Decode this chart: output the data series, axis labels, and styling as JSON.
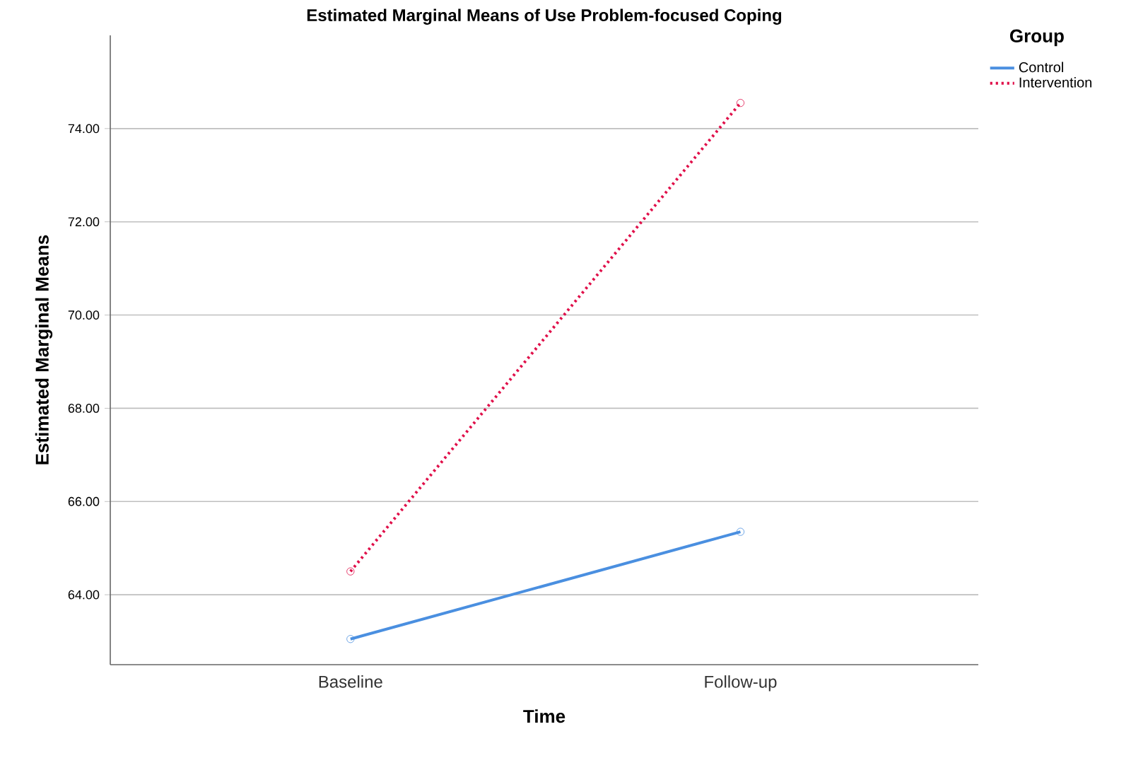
{
  "chart_data": {
    "type": "line",
    "title": "Estimated Marginal Means of Use Problem-focused Coping",
    "xlabel": "Time",
    "ylabel": "Estimated Marginal Means",
    "legend_title": "Group",
    "categories": [
      "Baseline",
      "Follow-up"
    ],
    "series": [
      {
        "name": "Control",
        "color": "#4a8fe0",
        "values": [
          63.05,
          65.35
        ],
        "line_style": "solid"
      },
      {
        "name": "Intervention",
        "color": "#e0104a",
        "values": [
          64.5,
          74.55
        ],
        "line_style": "dotted"
      }
    ],
    "ylim": [
      62.5,
      76.0
    ],
    "yticks": [
      {
        "value": 64,
        "label": "64.00"
      },
      {
        "value": 66,
        "label": "66.00"
      },
      {
        "value": 68,
        "label": "68.00"
      },
      {
        "value": 70,
        "label": "70.00"
      },
      {
        "value": 72,
        "label": "72.00"
      },
      {
        "value": 74,
        "label": "74.00"
      }
    ],
    "grid": "y",
    "legend": "top right",
    "marker": "circle"
  }
}
